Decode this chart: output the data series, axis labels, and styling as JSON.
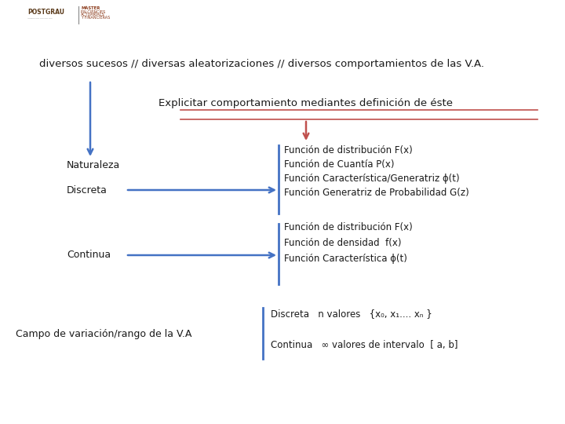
{
  "title_line": "diversos sucesos // diversas aleatorizaciones // diversos comportamientos de las V.A.",
  "box_text": "Explicitar comportamiento mediantes definición de éste",
  "naturaleza_label": "Naturaleza",
  "discreta_label": "Discreta",
  "continua_label": "Continua",
  "campo_label": "Campo de variación/rango de la V.A",
  "discreta_functions": [
    "Función de distribución F(x)",
    "Función de Cuantía P(x)",
    "Función Característica/Generatriz ϕ(t)",
    "Función Generatriz de Probabilidad G(z)"
  ],
  "continua_functions": [
    "Función de distribución F(x)",
    "Función de densidad  f(x)",
    "Función Característica ϕ(t)"
  ],
  "campo_discreta": "Discreta   n valores   {x₀, x₁.... xₙ }",
  "campo_continua": "Continua   ∞ valores de intervalo  [ a, b]",
  "bg_color": "#ffffff",
  "text_color": "#1a1a1a",
  "blue": "#4472C4",
  "red": "#C0504D",
  "font_size_title": 9.5,
  "font_size_box": 9.5,
  "font_size_body": 9.0,
  "font_size_small": 8.5
}
